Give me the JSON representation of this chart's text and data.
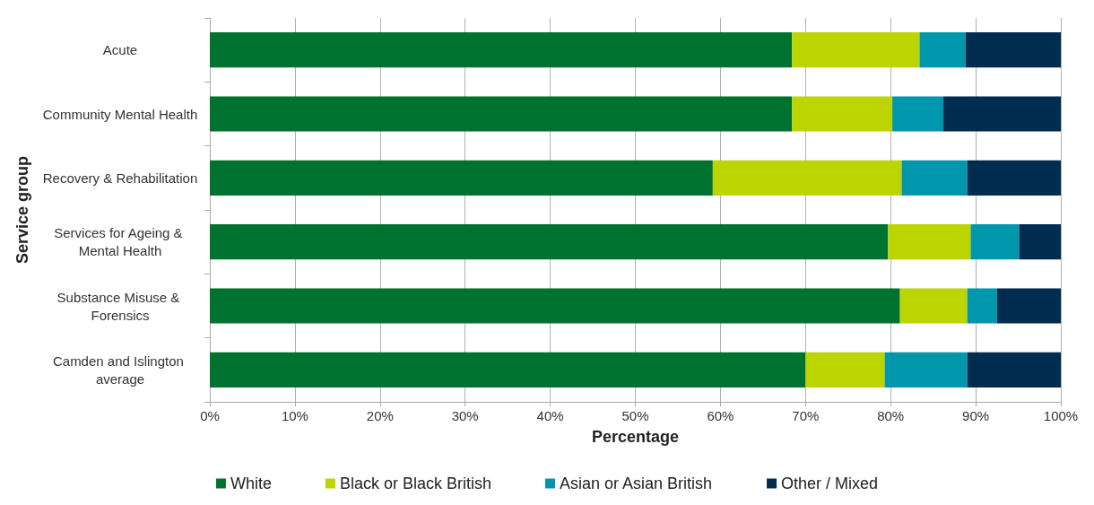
{
  "chart_data": {
    "type": "bar",
    "orientation": "horizontal",
    "stacked": true,
    "xlabel": "Percentage",
    "ylabel": "Service group",
    "categories": [
      "Acute",
      "Community Mental Health",
      "Recovery & Rehabilitation",
      "Services for Ageing & Mental Health",
      "Substance Misuse & Forensics",
      "Camden and Islington average"
    ],
    "series": [
      {
        "name": "White",
        "color": "#00722f",
        "values": [
          68.4,
          68.4,
          59.1,
          79.7,
          81.1,
          70.0
        ]
      },
      {
        "name": "Black or Black British",
        "color": "#bcd400",
        "values": [
          15.0,
          11.8,
          22.2,
          9.7,
          7.9,
          9.3
        ]
      },
      {
        "name": "Asian or Asian British",
        "color": "#0097ac",
        "values": [
          5.4,
          6.0,
          7.7,
          5.7,
          3.5,
          9.7
        ]
      },
      {
        "name": "Other / Mixed",
        "color": "#002d4f",
        "values": [
          11.2,
          13.8,
          11.0,
          4.9,
          7.5,
          11.0
        ]
      }
    ],
    "xlim": [
      0,
      100
    ],
    "xticks": [
      {
        "value": 0,
        "label": "0%"
      },
      {
        "value": 10,
        "label": "10%"
      },
      {
        "value": 20,
        "label": "20%"
      },
      {
        "value": 30,
        "label": "30%"
      },
      {
        "value": 40,
        "label": "40%"
      },
      {
        "value": 50,
        "label": "50%"
      },
      {
        "value": 60,
        "label": "60%"
      },
      {
        "value": 70,
        "label": "70%"
      },
      {
        "value": 80,
        "label": "80%"
      },
      {
        "value": 90,
        "label": "90%"
      },
      {
        "value": 100,
        "label": "100%"
      }
    ],
    "grid": "x",
    "legend": "bottom"
  }
}
